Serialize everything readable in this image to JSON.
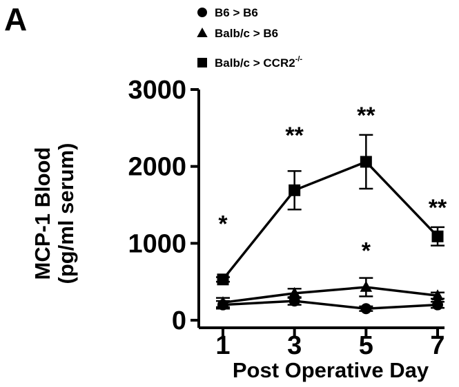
{
  "panel_label": "A",
  "chart_data": {
    "type": "line",
    "title": "",
    "xlabel": "Post Operative Day",
    "ylabel_line1": "MCP-1 Blood",
    "ylabel_line2": "(pg/ml serum)",
    "x": [
      1,
      3,
      5,
      7
    ],
    "xlim": [
      1,
      7
    ],
    "ylim": [
      0,
      3000
    ],
    "xticks": [
      "1",
      "3",
      "5",
      "7"
    ],
    "yticks": [
      "0",
      "1000",
      "2000",
      "3000"
    ],
    "grid": false,
    "legend_position": "top",
    "series": [
      {
        "name": "B6 > B6",
        "marker": "circle",
        "values": [
          200,
          250,
          150,
          200
        ],
        "errors": [
          50,
          50,
          30,
          40
        ]
      },
      {
        "name": "Balb/c > B6",
        "marker": "triangle",
        "values": [
          230,
          350,
          430,
          320
        ],
        "errors": [
          60,
          60,
          120,
          40
        ]
      },
      {
        "name": "Balb/c > CCR2",
        "name_sup": "-/-",
        "marker": "square",
        "values": [
          530,
          1690,
          2060,
          1090
        ],
        "errors": [
          30,
          250,
          350,
          120
        ]
      }
    ],
    "annotations": [
      {
        "x": 1,
        "y": 1350,
        "text": "*"
      },
      {
        "x": 3,
        "y": 2500,
        "text": "**"
      },
      {
        "x": 5,
        "y": 2760,
        "text": "**"
      },
      {
        "x": 5,
        "y": 1000,
        "text": "*"
      },
      {
        "x": 7,
        "y": 1560,
        "text": "**"
      }
    ]
  }
}
